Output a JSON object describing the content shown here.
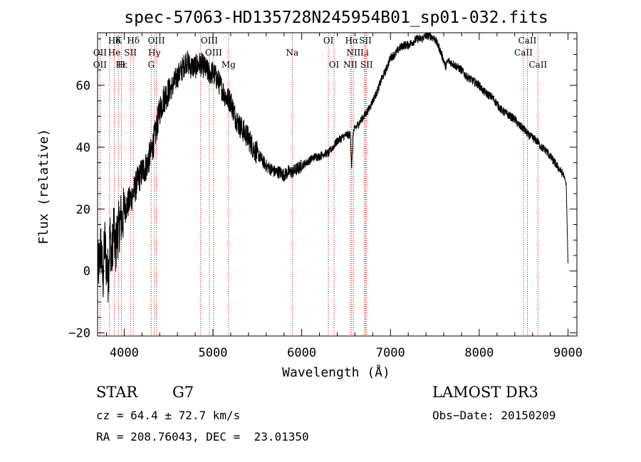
{
  "chart_data": {
    "type": "line",
    "title": "spec-57063-HD135728N245954B01_sp01-032.fits",
    "xlabel": "Wavelength (Å)",
    "ylabel": "Flux (relative)",
    "xlim": [
      3700,
      9100
    ],
    "ylim": [
      -21,
      77
    ],
    "xticks": [
      4000,
      5000,
      6000,
      7000,
      8000,
      9000
    ],
    "yticks": [
      -20,
      0,
      20,
      40,
      60
    ],
    "xtick_labels": [
      "4000",
      "5000",
      "6000",
      "7000",
      "8000",
      "9000"
    ],
    "ytick_labels": [
      "−20",
      "0",
      "20",
      "40",
      "60"
    ],
    "series": [
      {
        "name": "flux",
        "x": [
          3700,
          3720,
          3740,
          3760,
          3780,
          3800,
          3820,
          3840,
          3860,
          3880,
          3900,
          3920,
          3940,
          3960,
          3980,
          4000,
          4050,
          4100,
          4150,
          4200,
          4250,
          4300,
          4350,
          4400,
          4450,
          4500,
          4550,
          4600,
          4650,
          4700,
          4750,
          4800,
          4850,
          4900,
          4950,
          5000,
          5050,
          5100,
          5150,
          5200,
          5250,
          5300,
          5350,
          5400,
          5450,
          5500,
          5550,
          5600,
          5650,
          5700,
          5750,
          5800,
          5850,
          5900,
          5950,
          6000,
          6050,
          6100,
          6150,
          6200,
          6250,
          6300,
          6350,
          6400,
          6450,
          6500,
          6550,
          6563,
          6580,
          6600,
          6650,
          6700,
          6750,
          6800,
          6850,
          6900,
          6950,
          7000,
          7050,
          7100,
          7150,
          7200,
          7250,
          7300,
          7350,
          7400,
          7450,
          7500,
          7550,
          7600,
          7620,
          7650,
          7700,
          7750,
          7800,
          7850,
          7900,
          7950,
          8000,
          8050,
          8100,
          8150,
          8200,
          8250,
          8300,
          8350,
          8400,
          8450,
          8500,
          8550,
          8600,
          8650,
          8700,
          8750,
          8800,
          8850,
          8900,
          8950,
          8980,
          9000
        ],
        "y": [
          0,
          3,
          8,
          -4,
          10,
          2,
          -2,
          12,
          3,
          15,
          6,
          12,
          14,
          17,
          16,
          20,
          22,
          25,
          29,
          32,
          34,
          38,
          44,
          52,
          56,
          58,
          60,
          63,
          65,
          68,
          66,
          66,
          67,
          66,
          64,
          64,
          62,
          59,
          56,
          55,
          50,
          47,
          45,
          43,
          40,
          38,
          36,
          34,
          33,
          32,
          32,
          31,
          32,
          32,
          33,
          34,
          35,
          36,
          37,
          37,
          38,
          38,
          40,
          42,
          43,
          44,
          44,
          33,
          45,
          46,
          48,
          50,
          52,
          55,
          58,
          62,
          65,
          69,
          70,
          72,
          73,
          73,
          74,
          75,
          75,
          76,
          76,
          75,
          72,
          68,
          66,
          68,
          67,
          66,
          65,
          63,
          62,
          61,
          60,
          58,
          57,
          56,
          54,
          52,
          51,
          50,
          49,
          47,
          46,
          44,
          43,
          42,
          40,
          39,
          37,
          35,
          33,
          31,
          28,
          2
        ]
      }
    ],
    "spectral_lines": [
      {
        "label": "Hδ",
        "x": 3889,
        "row": 0
      },
      {
        "label": "K",
        "x": 3934,
        "row": 0
      },
      {
        "label": "Hδ",
        "x": 4102,
        "row": 0
      },
      {
        "label": "OIII",
        "x": 4363,
        "row": 0
      },
      {
        "label": "OIII",
        "x": 4959,
        "row": 0
      },
      {
        "label": "OI",
        "x": 6300,
        "row": 0
      },
      {
        "label": "Hα",
        "x": 6563,
        "row": 0
      },
      {
        "label": "SII",
        "x": 6717,
        "row": 0
      },
      {
        "label": "CaII",
        "x": 8542,
        "row": 0
      },
      {
        "label": "OII",
        "x": 3727,
        "row": 1
      },
      {
        "label": "He",
        "x": 3889,
        "row": 1
      },
      {
        "label": "SII",
        "x": 4070,
        "row": 1
      },
      {
        "label": "Hγ",
        "x": 4340,
        "row": 1
      },
      {
        "label": "OIII",
        "x": 5007,
        "row": 1
      },
      {
        "label": "Na",
        "x": 5893,
        "row": 1
      },
      {
        "label": "NII",
        "x": 6583,
        "row": 1
      },
      {
        "label": "Li",
        "x": 6708,
        "row": 1
      },
      {
        "label": "CaII",
        "x": 8498,
        "row": 1
      },
      {
        "label": "OII",
        "x": 3727,
        "row": 2
      },
      {
        "label": "Hε",
        "x": 3970,
        "row": 2
      },
      {
        "label": "H",
        "x": 3968,
        "row": 2
      },
      {
        "label": "G",
        "x": 4304,
        "row": 2
      },
      {
        "label": "Hβ",
        "x": 4861,
        "row": 2
      },
      {
        "label": "Mg",
        "x": 5175,
        "row": 2
      },
      {
        "label": "OI",
        "x": 6364,
        "row": 2
      },
      {
        "label": "NII",
        "x": 6548,
        "row": 2
      },
      {
        "label": "SII",
        "x": 6731,
        "row": 2
      },
      {
        "label": "CaII",
        "x": 8662,
        "row": 2
      }
    ],
    "line_positions": [
      3727,
      3835,
      3889,
      3934,
      3968,
      4070,
      4102,
      4304,
      4340,
      4363,
      4861,
      4959,
      5007,
      5175,
      5893,
      6300,
      6364,
      6548,
      6563,
      6583,
      6708,
      6717,
      6731,
      8498,
      8542,
      8662
    ],
    "line_color": "#cc0000"
  },
  "info": {
    "object_type": "STAR",
    "subclass": "G7",
    "survey": "LAMOST DR3",
    "cz": "cz = 64.4 ± 72.7 km/s",
    "obs_date": "Obs−Date: 20150209",
    "coords": "RA = 208.76043, DEC =  23.01350"
  }
}
